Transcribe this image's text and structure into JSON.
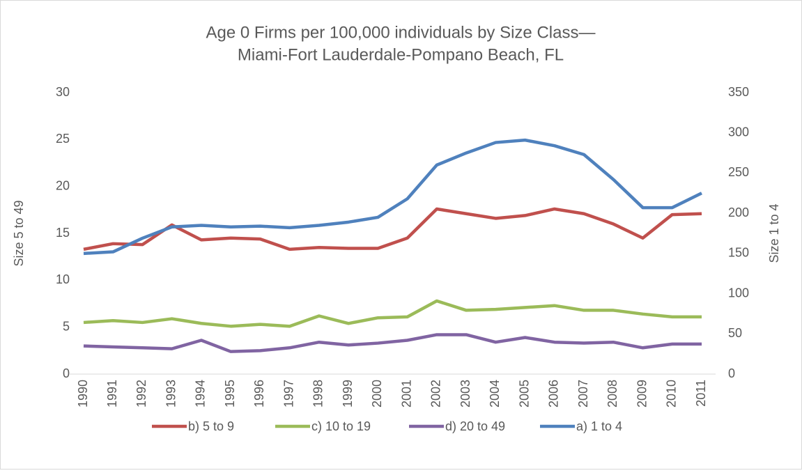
{
  "chart_data": {
    "type": "line",
    "title": [
      "Age 0 Firms per 100,000 individuals by Size Class—",
      "Miami-Fort Lauderdale-Pompano Beach, FL"
    ],
    "y_label": "Size 5 to 49",
    "y2_label": "Size 1 to 4",
    "categories": [
      "1990",
      "1991",
      "1992",
      "1993",
      "1994",
      "1995",
      "1996",
      "1997",
      "1998",
      "1999",
      "2000",
      "2001",
      "2002",
      "2003",
      "2004",
      "2005",
      "2006",
      "2007",
      "2008",
      "2009",
      "2010",
      "2011"
    ],
    "ylim": [
      0,
      30
    ],
    "yticks": [
      0,
      5,
      10,
      15,
      20,
      25,
      30
    ],
    "y2lim": [
      0,
      350
    ],
    "y2ticks": [
      0,
      50,
      100,
      150,
      200,
      250,
      300,
      350
    ],
    "grid": false,
    "legend": "bottom",
    "series": [
      {
        "name": "b) 5 to 9",
        "color": "#c0504d",
        "values": [
          13.3,
          13.9,
          13.8,
          15.9,
          14.3,
          14.5,
          14.4,
          13.3,
          13.5,
          13.4,
          13.4,
          14.5,
          17.6,
          17.1,
          16.6,
          16.9,
          17.6,
          17.1,
          16.0,
          14.5,
          17.0,
          17.1
        ]
      },
      {
        "name": "c) 10 to 19",
        "color": "#9bbb59",
        "values": [
          5.5,
          5.7,
          5.5,
          5.9,
          5.4,
          5.1,
          5.3,
          5.1,
          6.2,
          5.4,
          6.0,
          6.1,
          7.8,
          6.8,
          6.9,
          7.1,
          7.3,
          6.8,
          6.8,
          6.4,
          6.1,
          6.1
        ]
      },
      {
        "name": "d) 20 to 49",
        "color": "#8064a2",
        "values": [
          3.0,
          2.9,
          2.8,
          2.7,
          3.6,
          2.4,
          2.5,
          2.8,
          3.4,
          3.1,
          3.3,
          3.6,
          4.2,
          4.2,
          3.4,
          3.9,
          3.4,
          3.3,
          3.4,
          2.8,
          3.2,
          3.2
        ]
      },
      {
        "name": "a) 1 to 4",
        "color": "#4f81bd",
        "axis": "y2",
        "values": [
          150,
          152,
          169,
          183,
          185,
          183,
          184,
          182,
          185,
          189,
          195,
          218,
          260,
          275,
          288,
          291,
          284,
          273,
          242,
          207,
          207,
          225
        ]
      }
    ]
  }
}
